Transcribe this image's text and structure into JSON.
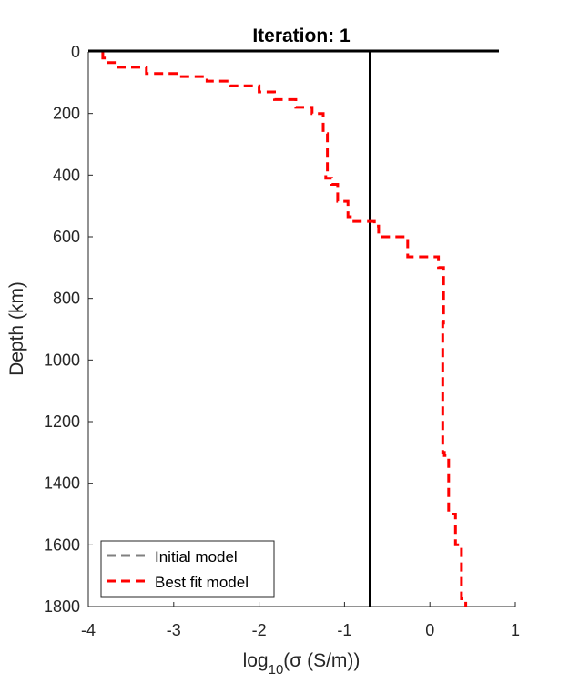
{
  "chart_data": {
    "type": "line",
    "title": "Iteration: 1",
    "xlabel": {
      "pre": "log",
      "sub": "10",
      "post": "(σ (S/m))"
    },
    "ylabel": "Depth (km)",
    "xlim": [
      -4,
      1
    ],
    "ylim": [
      0,
      1800
    ],
    "y_reversed": true,
    "xticks": [
      "-4",
      "-3",
      "-2",
      "-1",
      "0",
      "1"
    ],
    "yticks": [
      "0",
      "200",
      "400",
      "600",
      "800",
      "1000",
      "1200",
      "1400",
      "1600",
      "1800"
    ],
    "grid": false,
    "legend": {
      "position": "bottom-left",
      "entries": [
        "Initial model",
        "Best fit model"
      ]
    },
    "series": [
      {
        "name": "Initial model",
        "color": "#808080",
        "style": "dashed",
        "x": [],
        "y": []
      },
      {
        "name": "Best fit model",
        "color": "#ff0000",
        "style": "dashed",
        "x": [
          -3.83,
          -3.83,
          -3.79,
          -3.79,
          -3.65,
          -3.65,
          -3.32,
          -3.32,
          -2.97,
          -2.97,
          -2.61,
          -2.61,
          -2.34,
          -2.34,
          -2.0,
          -2.0,
          -1.82,
          -1.82,
          -1.57,
          -1.57,
          -1.38,
          -1.38,
          -1.25,
          -1.25,
          -1.2,
          -1.2,
          -1.22,
          -1.22,
          -1.15,
          -1.15,
          -1.08,
          -1.08,
          -0.96,
          -0.96,
          -0.91,
          -0.91,
          -0.65,
          -0.65,
          -0.6,
          -0.6,
          -0.26,
          -0.26,
          -0.26,
          -0.26,
          0.1,
          0.1,
          0.16,
          0.16,
          0.15,
          0.15,
          0.15,
          0.15,
          0.17,
          0.17,
          0.22,
          0.22,
          0.3,
          0.3,
          0.37,
          0.37,
          0.42,
          0.42
        ],
        "y": [
          0,
          20,
          20,
          35,
          35,
          50,
          50,
          70,
          70,
          80,
          80,
          95,
          95,
          110,
          110,
          130,
          130,
          155,
          155,
          180,
          180,
          200,
          200,
          265,
          265,
          390,
          390,
          410,
          410,
          430,
          430,
          485,
          485,
          535,
          535,
          550,
          550,
          565,
          565,
          600,
          600,
          655,
          655,
          665,
          665,
          700,
          700,
          880,
          880,
          905,
          905,
          1300,
          1300,
          1310,
          1310,
          1500,
          1500,
          1600,
          1600,
          1775,
          1775,
          1800
        ]
      },
      {
        "name": "",
        "color": "#000000",
        "style": "solid",
        "x": [
          -0.7,
          -0.7
        ],
        "y": [
          0,
          1800
        ]
      }
    ]
  }
}
